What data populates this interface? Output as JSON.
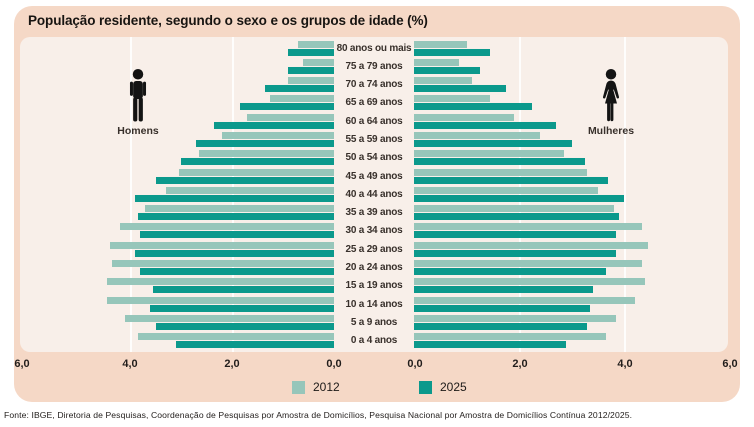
{
  "title": "População residente, segundo o sexo e os grupos de idade (%)",
  "men_label": "Homens",
  "women_label": "Mulheres",
  "axis": {
    "left_ticks": [
      "6,0",
      "4,0",
      "2,0",
      "0,0"
    ],
    "right_ticks": [
      "0,0",
      "2,0",
      "4,0",
      "6,0"
    ]
  },
  "legend": {
    "items": [
      {
        "label": "2012",
        "color": "#96c6ba"
      },
      {
        "label": "2025",
        "color": "#0b998c"
      }
    ]
  },
  "footer": "Fonte: IBGE, Diretoria de Pesquisas, Coordenação de Pesquisas por Amostra de Domicílios, Pesquisa Nacional por Amostra de Domicílios Contínua 2012/2025.",
  "colors": {
    "card_bg": "#f5d8c6",
    "plot_bg": "#f8efe9",
    "bar_2012": "#96c6ba",
    "bar_2025": "#0b998c",
    "icon": "#141414",
    "gridline": "rgba(255,255,255,0.85)"
  },
  "chart_data": {
    "type": "bar",
    "subtype": "population_pyramid",
    "title": "População residente, segundo o sexo e os grupos de idade (%)",
    "unit": "%",
    "xlim_each_side": [
      0,
      6
    ],
    "axis_ticks": [
      0,
      2,
      4,
      6
    ],
    "grid": true,
    "legend_position": "bottom",
    "categories": [
      "80 anos ou mais",
      "75 a 79 anos",
      "70 a 74 anos",
      "65 a 69 anos",
      "60 a 64 anos",
      "55 a 59 anos",
      "50 a 54 anos",
      "45 a 49 anos",
      "40 a 44 anos",
      "35 a 39 anos",
      "30 a 34 anos",
      "25 a 29 anos",
      "20 a 24 anos",
      "15 a 19 anos",
      "10 a 14 anos",
      "5 a 9 anos",
      "0 a 4 anos"
    ],
    "series": [
      {
        "name": "Homens 2012",
        "year": "2012",
        "side": "left",
        "color": "#96c6ba",
        "values": [
          0.7,
          0.6,
          0.9,
          1.25,
          1.7,
          2.2,
          2.65,
          3.05,
          3.3,
          3.7,
          4.2,
          4.4,
          4.35,
          4.45,
          4.45,
          4.1,
          3.85
        ]
      },
      {
        "name": "Homens 2025",
        "year": "2025",
        "side": "left",
        "color": "#0b998c",
        "values": [
          0.9,
          0.9,
          1.35,
          1.85,
          2.35,
          2.7,
          3.0,
          3.5,
          3.9,
          3.85,
          3.8,
          3.9,
          3.8,
          3.55,
          3.6,
          3.5,
          3.1
        ]
      },
      {
        "name": "Mulheres 2012",
        "year": "2012",
        "side": "right",
        "color": "#96c6ba",
        "values": [
          1.0,
          0.85,
          1.1,
          1.45,
          1.9,
          2.4,
          2.85,
          3.3,
          3.5,
          3.8,
          4.35,
          4.45,
          4.35,
          4.4,
          4.2,
          3.85,
          3.65
        ]
      },
      {
        "name": "Mulheres 2025",
        "year": "2025",
        "side": "right",
        "color": "#0b998c",
        "values": [
          1.45,
          1.25,
          1.75,
          2.25,
          2.7,
          3.0,
          3.25,
          3.7,
          4.0,
          3.9,
          3.85,
          3.85,
          3.65,
          3.4,
          3.35,
          3.3,
          2.9
        ]
      }
    ]
  }
}
